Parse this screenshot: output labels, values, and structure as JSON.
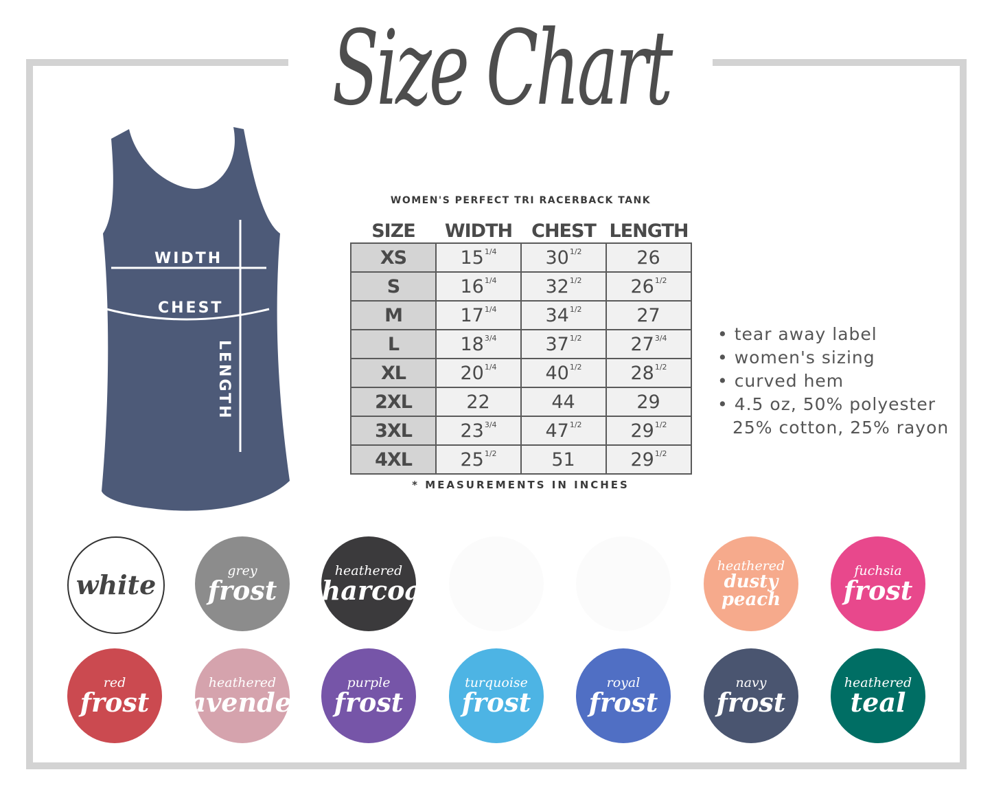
{
  "title": "Size Chart",
  "garment": {
    "subtitle": "WOMEN'S PERFECT TRI RACERBACK TANK",
    "measure_labels": {
      "width": "WIDTH",
      "chest": "CHEST",
      "length": "LENGTH"
    },
    "color": "#4d5a78"
  },
  "table": {
    "headers": [
      "SIZE",
      "WIDTH",
      "CHEST",
      "LENGTH"
    ],
    "rows": [
      {
        "size": "XS",
        "width": "15",
        "width_frac": "1/4",
        "chest": "30",
        "chest_frac": "1/2",
        "length": "26",
        "length_frac": ""
      },
      {
        "size": "S",
        "width": "16",
        "width_frac": "1/4",
        "chest": "32",
        "chest_frac": "1/2",
        "length": "26",
        "length_frac": "1/2"
      },
      {
        "size": "M",
        "width": "17",
        "width_frac": "1/4",
        "chest": "34",
        "chest_frac": "1/2",
        "length": "27",
        "length_frac": ""
      },
      {
        "size": "L",
        "width": "18",
        "width_frac": "3/4",
        "chest": "37",
        "chest_frac": "1/2",
        "length": "27",
        "length_frac": "3/4"
      },
      {
        "size": "XL",
        "width": "20",
        "width_frac": "1/4",
        "chest": "40",
        "chest_frac": "1/2",
        "length": "28",
        "length_frac": "1/2"
      },
      {
        "size": "2XL",
        "width": "22",
        "width_frac": "",
        "chest": "44",
        "chest_frac": "",
        "length": "29",
        "length_frac": ""
      },
      {
        "size": "3XL",
        "width": "23",
        "width_frac": "3/4",
        "chest": "47",
        "chest_frac": "1/2",
        "length": "29",
        "length_frac": "1/2"
      },
      {
        "size": "4XL",
        "width": "25",
        "width_frac": "1/2",
        "chest": "51",
        "chest_frac": "",
        "length": "29",
        "length_frac": "1/2"
      }
    ],
    "note": "* MEASUREMENTS IN INCHES"
  },
  "features": [
    "tear away label",
    "women's sizing",
    "curved hem",
    "4.5 oz, 50% polyester",
    "25% cotton, 25% rayon"
  ],
  "swatches": [
    {
      "small": "",
      "big": "white",
      "color": "#ffffff",
      "text_color": "#444444"
    },
    {
      "small": "grey",
      "big": "frost",
      "color": "#8c8c8c",
      "text_color": "#ffffff"
    },
    {
      "small": "heathered",
      "big": "charcoal",
      "color": "#3b3a3c",
      "text_color": "#ffffff"
    },
    {
      "small": "",
      "big": "",
      "color": "#fbfbfb",
      "text_color": "#f4f4f4"
    },
    {
      "small": "",
      "big": "",
      "color": "#fbfbfb",
      "text_color": "#f4f4f4"
    },
    {
      "small": "heathered",
      "big": "dusty peach",
      "color": "#f6aa8c",
      "text_color": "#ffffff"
    },
    {
      "small": "fuchsia",
      "big": "frost",
      "color": "#e8488c",
      "text_color": "#ffffff"
    },
    {
      "small": "red",
      "big": "frost",
      "color": "#cb4a50",
      "text_color": "#ffffff"
    },
    {
      "small": "heathered",
      "big": "lavender",
      "color": "#d5a3ad",
      "text_color": "#ffffff"
    },
    {
      "small": "purple",
      "big": "frost",
      "color": "#7655a8",
      "text_color": "#ffffff"
    },
    {
      "small": "turquoise",
      "big": "frost",
      "color": "#4db4e4",
      "text_color": "#ffffff"
    },
    {
      "small": "royal",
      "big": "frost",
      "color": "#506fc4",
      "text_color": "#ffffff"
    },
    {
      "small": "navy",
      "big": "frost",
      "color": "#4a5570",
      "text_color": "#ffffff"
    },
    {
      "small": "heathered",
      "big": "teal",
      "color": "#006e64",
      "text_color": "#ffffff"
    }
  ]
}
